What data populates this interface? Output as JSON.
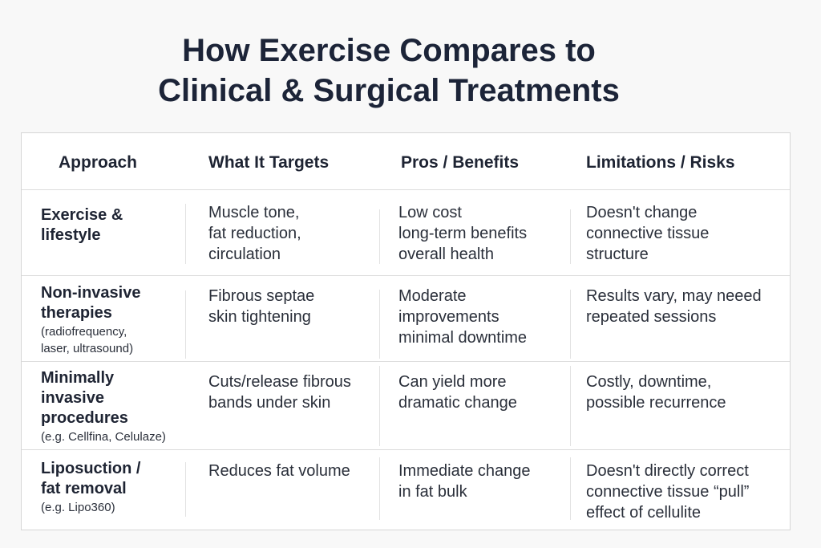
{
  "title": {
    "line1": "How Exercise Compares to",
    "line2": "Clinical & Surgical Treatments"
  },
  "table": {
    "headers": [
      "Approach",
      "What It Targets",
      "Pros / Benefits",
      "Limitations / Risks"
    ],
    "rows": [
      {
        "approach": [
          "Exercise &",
          "lifestyle"
        ],
        "approach_note": [],
        "targets": [
          "Muscle tone,",
          "fat reduction,",
          "circulation"
        ],
        "pros": [
          "Low cost",
          "long-term benefits",
          "overall health"
        ],
        "limits": [
          "Doesn't change",
          "connective tissue",
          "structure"
        ]
      },
      {
        "approach": [
          "Non-invasive",
          "therapies"
        ],
        "approach_note": [
          "(radiofrequency,",
          "laser, ultrasound)"
        ],
        "targets": [
          "Fibrous septae",
          "skin tightening"
        ],
        "pros": [
          "Moderate",
          "improvements",
          "minimal downtime"
        ],
        "limits": [
          "Results vary, may neeed",
          "repeated sessions"
        ]
      },
      {
        "approach": [
          "Minimally",
          "invasive",
          "procedures"
        ],
        "approach_note": [
          "(e.g. Cellfina, Celulaze)"
        ],
        "targets": [
          "Cuts/release fibrous",
          "bands under skin"
        ],
        "pros": [
          "Can yield more",
          "dramatic change"
        ],
        "limits": [
          "Costly, downtime,",
          "possible recurrence"
        ]
      },
      {
        "approach": [
          "Liposuction /",
          "fat removal"
        ],
        "approach_note": [
          "(e.g. Lipo360)"
        ],
        "targets": [
          "Reduces fat volume"
        ],
        "pros": [
          "Immediate change",
          "in fat bulk"
        ],
        "limits": [
          "Doesn't directly correct",
          "connective tissue “pull”",
          "effect of cellulite"
        ]
      }
    ]
  }
}
